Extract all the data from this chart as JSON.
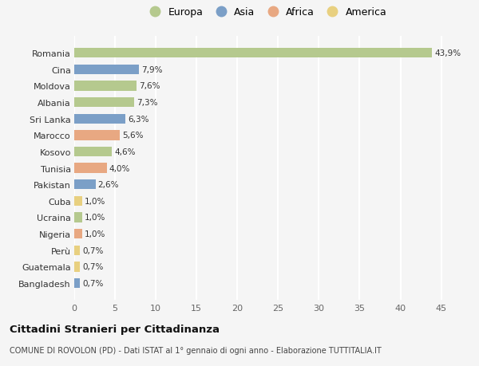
{
  "countries": [
    "Romania",
    "Cina",
    "Moldova",
    "Albania",
    "Sri Lanka",
    "Marocco",
    "Kosovo",
    "Tunisia",
    "Pakistan",
    "Cuba",
    "Ucraina",
    "Nigeria",
    "Perù",
    "Guatemala",
    "Bangladesh"
  ],
  "values": [
    43.9,
    7.9,
    7.6,
    7.3,
    6.3,
    5.6,
    4.6,
    4.0,
    2.6,
    1.0,
    1.0,
    1.0,
    0.7,
    0.7,
    0.7
  ],
  "labels": [
    "43,9%",
    "7,9%",
    "7,6%",
    "7,3%",
    "6,3%",
    "5,6%",
    "4,6%",
    "4,0%",
    "2,6%",
    "1,0%",
    "1,0%",
    "1,0%",
    "0,7%",
    "0,7%",
    "0,7%"
  ],
  "continents": [
    "Europa",
    "Asia",
    "Europa",
    "Europa",
    "Asia",
    "Africa",
    "Europa",
    "Africa",
    "Asia",
    "America",
    "Europa",
    "Africa",
    "America",
    "America",
    "Asia"
  ],
  "colors": {
    "Europa": "#b5c98e",
    "Asia": "#7b9fc7",
    "Africa": "#e8a882",
    "America": "#e8d080"
  },
  "legend_order": [
    "Europa",
    "Asia",
    "Africa",
    "America"
  ],
  "title": "Cittadini Stranieri per Cittadinanza",
  "subtitle": "COMUNE DI ROVOLON (PD) - Dati ISTAT al 1° gennaio di ogni anno - Elaborazione TUTTITALIA.IT",
  "xlim": [
    0,
    47
  ],
  "xticks": [
    0,
    5,
    10,
    15,
    20,
    25,
    30,
    35,
    40,
    45
  ],
  "background_color": "#f5f5f5",
  "grid_color": "#ffffff",
  "bar_height": 0.6
}
